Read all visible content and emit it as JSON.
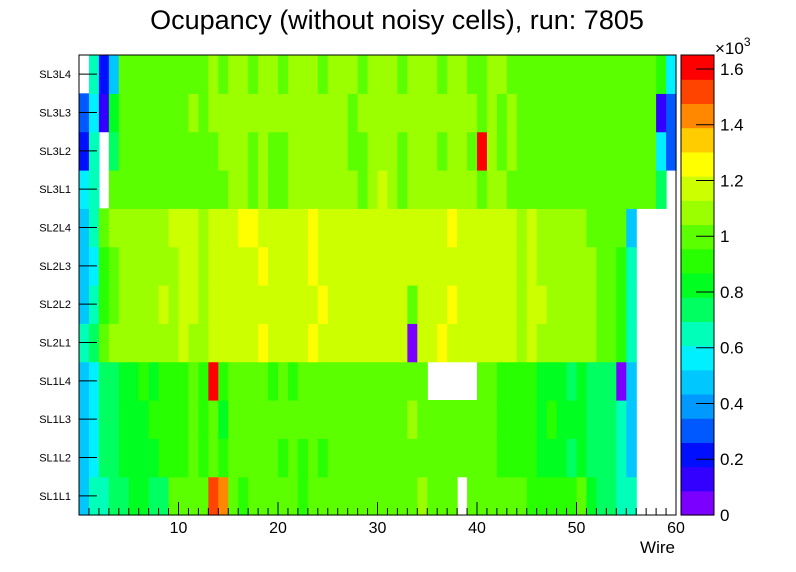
{
  "chart_data": {
    "type": "heatmap",
    "title": "Ocupancy (without noisy cells), run: 7805",
    "xlabel": "Wire",
    "ylabel": "",
    "xlim": [
      0,
      60
    ],
    "x_ticks": [
      "10",
      "20",
      "30",
      "40",
      "50",
      "60"
    ],
    "x_tick_values": [
      10,
      20,
      30,
      40,
      50,
      60
    ],
    "layers": [
      "SL1L1",
      "SL1L2",
      "SL1L3",
      "SL1L4",
      "SL2L1",
      "SL2L2",
      "SL2L3",
      "SL2L4",
      "SL3L1",
      "SL3L2",
      "SL3L3",
      "SL3L4"
    ],
    "colorbar": {
      "multiplier": "×10",
      "exponent": "3",
      "min": 0,
      "max": 1.65,
      "tick_labels": [
        "0",
        "0.2",
        "0.4",
        "0.6",
        "0.8",
        "1",
        "1.2",
        "1.4",
        "1.6"
      ],
      "tick_values": [
        0,
        0.2,
        0.4,
        0.6,
        0.8,
        1.0,
        1.2,
        1.4,
        1.6
      ],
      "palette": [
        "#7c00ff",
        "#3300ff",
        "#0010ff",
        "#0058ff",
        "#0099ff",
        "#00c8ff",
        "#00f0ff",
        "#00ffb8",
        "#00ff60",
        "#00ff20",
        "#28ff00",
        "#5cff00",
        "#9cff00",
        "#ccff00",
        "#ffff00",
        "#ffcc00",
        "#ff8800",
        "#ff4400",
        "#ff0000"
      ]
    },
    "values_note": "occupancy in units of 10^3 per wire (1..60) per layer; null = empty cell",
    "values": {
      "SL1L1": [
        0.5,
        0.62,
        0.66,
        0.76,
        0.76,
        0.84,
        0.82,
        0.76,
        0.76,
        0.96,
        0.98,
        0.96,
        1.0,
        1.52,
        1.4,
        0.96,
        0.94,
        0.96,
        0.98,
        0.96,
        0.96,
        0.98,
        0.94,
        0.96,
        0.96,
        0.98,
        0.98,
        1.0,
        0.98,
        1.02,
        1.0,
        1.04,
        0.98,
        1.02,
        1.06,
        1.0,
        1.0,
        0.96,
        null,
        1.0,
        0.98,
        0.98,
        0.96,
        0.96,
        1.0,
        0.94,
        0.88,
        0.94,
        0.92,
        0.9,
        0.96,
        0.84,
        0.74,
        0.74,
        0.64,
        0.62,
        null,
        null,
        null,
        null
      ],
      "SL1L2": [
        0.48,
        0.6,
        0.7,
        0.72,
        0.8,
        0.84,
        0.86,
        0.86,
        0.9,
        0.94,
        0.94,
        0.96,
        0.92,
        0.96,
        0.94,
        0.96,
        0.98,
        0.96,
        0.98,
        0.96,
        0.92,
        0.98,
        0.94,
        0.96,
        0.92,
        0.96,
        0.98,
        1.0,
        1.0,
        1.0,
        0.98,
        1.0,
        0.96,
        1.04,
        1.0,
        1.0,
        1.02,
        0.96,
        0.98,
        0.96,
        0.96,
        0.96,
        0.92,
        0.9,
        0.94,
        0.92,
        0.82,
        0.86,
        0.84,
        0.78,
        0.84,
        0.78,
        0.72,
        0.74,
        0.66,
        0.52,
        null,
        null,
        null,
        null
      ],
      "SL1L3": [
        0.44,
        0.6,
        0.7,
        0.74,
        0.8,
        0.86,
        0.86,
        0.88,
        0.9,
        0.92,
        0.94,
        0.96,
        0.9,
        0.96,
        0.84,
        0.96,
        0.96,
        0.98,
        0.98,
        0.96,
        0.96,
        0.96,
        0.98,
        0.96,
        0.98,
        0.96,
        1.0,
        1.02,
        1.0,
        1.02,
        1.0,
        1.02,
        1.0,
        1.06,
        1.04,
        1.0,
        0.98,
        0.96,
        0.98,
        0.98,
        0.96,
        0.96,
        0.92,
        0.92,
        0.94,
        0.92,
        0.82,
        0.88,
        0.86,
        0.8,
        0.84,
        0.78,
        0.72,
        0.74,
        0.62,
        0.52,
        null,
        null,
        null,
        null
      ],
      "SL1L4": [
        0.46,
        0.58,
        0.7,
        0.76,
        0.8,
        0.84,
        0.88,
        0.86,
        0.92,
        0.94,
        0.94,
        0.96,
        0.94,
        1.64,
        0.94,
        0.96,
        0.96,
        0.98,
        0.96,
        0.94,
        0.96,
        0.94,
        0.98,
        0.96,
        0.96,
        0.98,
        0.98,
        1.02,
        1.0,
        0.98,
        1.04,
        1.02,
        1.0,
        1.02,
        1.04,
        null,
        null,
        null,
        null,
        null,
        0.96,
        0.96,
        0.92,
        0.92,
        0.94,
        0.9,
        0.82,
        0.86,
        0.84,
        0.78,
        0.82,
        0.76,
        0.72,
        0.76,
        0.08,
        0.52,
        null,
        null,
        null,
        null
      ],
      "SL2L1": [
        0.64,
        0.7,
        0.96,
        1.06,
        1.08,
        1.08,
        1.1,
        1.1,
        1.12,
        1.12,
        1.14,
        1.12,
        1.1,
        1.14,
        1.16,
        1.14,
        1.18,
        1.2,
        1.24,
        1.18,
        1.14,
        1.18,
        1.2,
        1.22,
        1.2,
        1.18,
        1.16,
        1.2,
        1.14,
        1.14,
        1.18,
        1.16,
        1.14,
        0.06,
        1.18,
        1.18,
        1.22,
        1.2,
        1.16,
        1.14,
        1.16,
        1.18,
        1.14,
        1.16,
        1.12,
        1.14,
        1.12,
        1.1,
        1.08,
        1.06,
        1.1,
        1.06,
        1.02,
        1.0,
        0.94,
        0.66,
        null,
        null,
        null,
        null
      ],
      "SL2L2": [
        0.5,
        0.62,
        0.92,
        1.04,
        1.06,
        1.06,
        1.1,
        1.12,
        1.14,
        1.12,
        1.14,
        1.16,
        1.12,
        1.16,
        1.14,
        1.16,
        1.18,
        1.2,
        1.2,
        1.2,
        1.16,
        1.2,
        1.2,
        1.2,
        1.22,
        1.18,
        1.16,
        1.2,
        1.16,
        1.14,
        1.2,
        1.16,
        1.14,
        1.0,
        1.2,
        1.18,
        1.18,
        1.22,
        1.16,
        1.16,
        1.18,
        1.2,
        1.14,
        1.14,
        1.12,
        1.16,
        1.14,
        1.12,
        1.08,
        1.08,
        1.1,
        1.06,
        1.02,
        1.0,
        0.94,
        0.66,
        null,
        null,
        null,
        null
      ],
      "SL2L3": [
        0.48,
        0.6,
        0.9,
        1.04,
        1.06,
        1.08,
        1.1,
        1.1,
        1.12,
        1.12,
        1.14,
        1.14,
        1.12,
        1.16,
        1.14,
        1.16,
        1.18,
        1.2,
        1.22,
        1.2,
        1.16,
        1.18,
        1.2,
        1.22,
        1.2,
        1.18,
        1.16,
        1.2,
        1.16,
        1.14,
        1.18,
        1.16,
        1.14,
        1.18,
        1.16,
        1.18,
        1.2,
        1.2,
        1.18,
        1.14,
        1.16,
        1.18,
        1.14,
        1.14,
        1.12,
        1.14,
        1.12,
        1.12,
        1.08,
        1.06,
        1.1,
        1.06,
        1.02,
        1.0,
        0.94,
        0.62,
        null,
        null,
        null,
        null
      ],
      "SL2L4": [
        0.5,
        0.66,
        0.96,
        1.06,
        1.08,
        1.1,
        1.1,
        1.12,
        1.12,
        1.14,
        1.14,
        1.16,
        1.12,
        1.16,
        1.14,
        1.18,
        1.22,
        1.26,
        1.2,
        1.18,
        1.18,
        1.2,
        1.18,
        1.22,
        1.2,
        1.18,
        1.16,
        1.2,
        1.16,
        1.14,
        1.18,
        1.16,
        1.14,
        1.18,
        1.16,
        1.18,
        1.2,
        1.24,
        1.18,
        1.14,
        1.16,
        1.18,
        1.14,
        1.14,
        1.12,
        1.14,
        1.12,
        1.1,
        1.08,
        1.06,
        1.1,
        1.04,
        1.02,
        1.0,
        0.96,
        0.46,
        null,
        null,
        null,
        null
      ],
      "SL3L1": [
        0.58,
        0.66,
        null,
        0.98,
        1.0,
        1.0,
        1.02,
        1.0,
        1.04,
        1.02,
        1.02,
        1.04,
        1.02,
        1.04,
        1.04,
        1.06,
        1.06,
        1.04,
        1.06,
        1.04,
        1.04,
        1.06,
        1.08,
        1.06,
        1.06,
        1.08,
        1.08,
        1.06,
        1.04,
        1.08,
        1.14,
        1.06,
        1.04,
        1.08,
        1.06,
        1.08,
        1.06,
        1.1,
        1.08,
        1.06,
        1.04,
        1.06,
        1.06,
        1.04,
        1.04,
        1.04,
        1.02,
        1.02,
        1.04,
        1.0,
        1.04,
        1.0,
        1.0,
        1.04,
        1.0,
        0.98,
        0.98,
        1.0,
        0.7,
        null
      ],
      "SL3L2": [
        0.26,
        0.66,
        null,
        0.72,
        0.98,
        1.0,
        1.04,
        1.0,
        1.02,
        1.04,
        1.04,
        1.04,
        1.02,
        1.04,
        1.06,
        1.06,
        1.08,
        1.04,
        1.06,
        1.04,
        1.04,
        1.08,
        1.06,
        1.08,
        1.06,
        1.08,
        1.08,
        1.04,
        1.04,
        1.08,
        1.06,
        1.06,
        1.04,
        1.08,
        1.06,
        1.08,
        1.04,
        1.08,
        1.06,
        1.04,
        1.64,
        1.06,
        1.04,
        1.06,
        1.04,
        1.04,
        1.04,
        1.02,
        1.02,
        1.0,
        1.04,
        1.0,
        1.0,
        1.02,
        1.0,
        0.98,
        0.98,
        0.98,
        0.56,
        0.34
      ],
      "SL3L3": [
        0.3,
        0.54,
        0.1,
        0.86,
        1.0,
        1.02,
        1.04,
        1.02,
        1.04,
        1.04,
        1.04,
        1.06,
        1.04,
        1.06,
        1.06,
        1.08,
        1.08,
        1.06,
        1.08,
        1.06,
        1.06,
        1.08,
        1.06,
        1.08,
        1.06,
        1.08,
        1.08,
        1.04,
        1.06,
        1.08,
        1.06,
        1.06,
        1.06,
        1.08,
        1.06,
        1.08,
        1.06,
        1.08,
        1.06,
        1.06,
        1.04,
        1.06,
        1.04,
        1.06,
        1.04,
        1.04,
        1.04,
        1.02,
        1.02,
        1.02,
        1.04,
        1.0,
        1.0,
        1.02,
        1.0,
        1.0,
        0.98,
        0.98,
        0.16,
        0.28
      ],
      "SL3L4": [
        null,
        0.68,
        0.18,
        0.48,
        0.96,
        1.0,
        1.02,
        1.0,
        1.04,
        1.02,
        1.02,
        1.04,
        1.04,
        1.06,
        1.04,
        1.08,
        1.06,
        1.04,
        1.06,
        1.06,
        1.04,
        1.08,
        1.06,
        1.08,
        1.04,
        1.08,
        1.06,
        1.06,
        1.04,
        1.08,
        1.06,
        1.06,
        1.04,
        1.08,
        1.06,
        1.08,
        1.04,
        1.08,
        1.06,
        1.04,
        1.04,
        1.06,
        1.06,
        1.04,
        1.04,
        1.04,
        1.02,
        1.02,
        1.02,
        1.0,
        1.04,
        1.0,
        1.0,
        1.0,
        1.04,
        1.0,
        0.98,
        1.0,
        0.92,
        0.56
      ]
    }
  }
}
